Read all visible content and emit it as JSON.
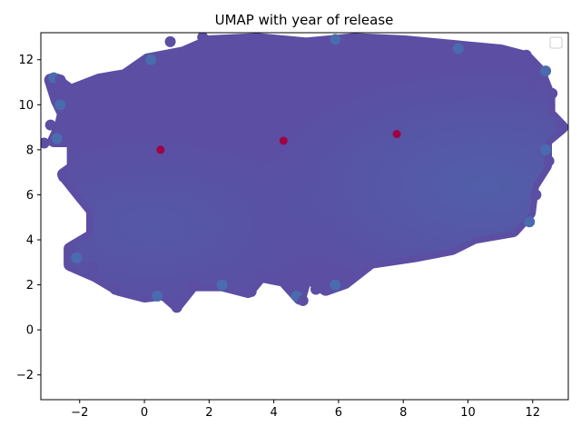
{
  "chart_data": {
    "type": "scatter",
    "title": "UMAP with year of release",
    "xlabel": "",
    "ylabel": "",
    "xlim": [
      -3.2,
      13.1
    ],
    "ylim": [
      -3.1,
      13.2
    ],
    "xticks": [
      -2,
      0,
      2,
      4,
      6,
      8,
      10,
      12
    ],
    "yticks": [
      -2,
      0,
      2,
      4,
      6,
      8,
      10,
      12
    ],
    "xtick_labels": [
      "−2",
      "0",
      "2",
      "4",
      "6",
      "8",
      "10",
      "12"
    ],
    "ytick_labels": [
      "−2",
      "0",
      "2",
      "4",
      "6",
      "8",
      "10",
      "12"
    ],
    "legend": {
      "placement": "top-right",
      "entries": []
    },
    "grid": false,
    "colors": {
      "primary_point": "#5b4ea3",
      "secondary_point": "#4a6cae",
      "outlier_point": "#9e0142"
    },
    "cloud_outline": [
      [
        -2.7,
        11.1
      ],
      [
        -2.3,
        10.6
      ],
      [
        -1.4,
        11.1
      ],
      [
        -0.6,
        11.3
      ],
      [
        0.1,
        12.0
      ],
      [
        1.2,
        12.3
      ],
      [
        2.0,
        12.8
      ],
      [
        3.5,
        12.9
      ],
      [
        5.0,
        12.7
      ],
      [
        6.5,
        12.9
      ],
      [
        8.0,
        12.8
      ],
      [
        9.5,
        12.6
      ],
      [
        11.0,
        12.4
      ],
      [
        11.8,
        12.1
      ],
      [
        12.2,
        11.5
      ],
      [
        12.5,
        10.4
      ],
      [
        12.5,
        9.6
      ],
      [
        12.9,
        9.0
      ],
      [
        12.4,
        8.4
      ],
      [
        12.4,
        7.3
      ],
      [
        12.0,
        6.4
      ],
      [
        11.9,
        5.2
      ],
      [
        11.4,
        4.4
      ],
      [
        10.2,
        4.1
      ],
      [
        9.5,
        3.6
      ],
      [
        8.4,
        3.3
      ],
      [
        7.0,
        3.0
      ],
      [
        6.2,
        2.1
      ],
      [
        5.6,
        1.8
      ],
      [
        5.0,
        2.4
      ],
      [
        4.8,
        1.4
      ],
      [
        4.3,
        2.2
      ],
      [
        3.6,
        2.4
      ],
      [
        3.2,
        1.7
      ],
      [
        2.4,
        2.0
      ],
      [
        1.5,
        2.0
      ],
      [
        1.0,
        1.1
      ],
      [
        0.6,
        1.6
      ],
      [
        0.0,
        1.5
      ],
      [
        -0.8,
        1.8
      ],
      [
        -1.5,
        2.4
      ],
      [
        -2.3,
        2.9
      ],
      [
        -2.3,
        3.6
      ],
      [
        -1.6,
        4.2
      ],
      [
        -1.6,
        5.3
      ],
      [
        -2.0,
        6.0
      ],
      [
        -2.5,
        6.9
      ],
      [
        -2.2,
        7.2
      ],
      [
        -2.2,
        8.4
      ],
      [
        -2.8,
        8.4
      ],
      [
        -2.6,
        9.0
      ],
      [
        -2.5,
        9.6
      ],
      [
        -2.7,
        10.2
      ],
      [
        -2.9,
        11.1
      ]
    ],
    "blob_points": [
      [
        -2.8,
        11.2
      ],
      [
        -2.6,
        11.1
      ],
      [
        -2.4,
        10.8
      ],
      [
        -2.6,
        10.0
      ],
      [
        -2.9,
        9.1
      ],
      [
        -3.1,
        8.3
      ],
      [
        -2.7,
        8.5
      ],
      [
        -2.5,
        6.8
      ],
      [
        -2.3,
        3.6
      ],
      [
        -2.1,
        3.2
      ],
      [
        -1.6,
        2.8
      ],
      [
        -0.9,
        1.8
      ],
      [
        0.4,
        1.5
      ],
      [
        1.0,
        1.0
      ],
      [
        1.5,
        2.0
      ],
      [
        2.4,
        2.0
      ],
      [
        3.3,
        1.7
      ],
      [
        3.6,
        2.5
      ],
      [
        4.7,
        1.5
      ],
      [
        4.9,
        1.3
      ],
      [
        5.3,
        1.8
      ],
      [
        5.9,
        2.0
      ],
      [
        0.8,
        12.8
      ],
      [
        1.8,
        13.0
      ],
      [
        5.9,
        12.9
      ],
      [
        8.2,
        12.8
      ],
      [
        11.8,
        12.2
      ],
      [
        12.4,
        11.5
      ],
      [
        12.6,
        10.5
      ],
      [
        12.9,
        9.0
      ],
      [
        12.4,
        8.0
      ],
      [
        12.5,
        7.5
      ],
      [
        12.1,
        6.0
      ],
      [
        11.9,
        4.8
      ],
      [
        12.0,
        10.8
      ],
      [
        10.5,
        12.3
      ],
      [
        9.7,
        12.5
      ],
      [
        3.5,
        12.8
      ],
      [
        -1.2,
        11.1
      ],
      [
        0.2,
        12.0
      ]
    ],
    "outliers": [
      {
        "x": 0.5,
        "y": 8.0
      },
      {
        "x": 4.3,
        "y": 8.4
      },
      {
        "x": 7.8,
        "y": 8.7
      }
    ]
  }
}
